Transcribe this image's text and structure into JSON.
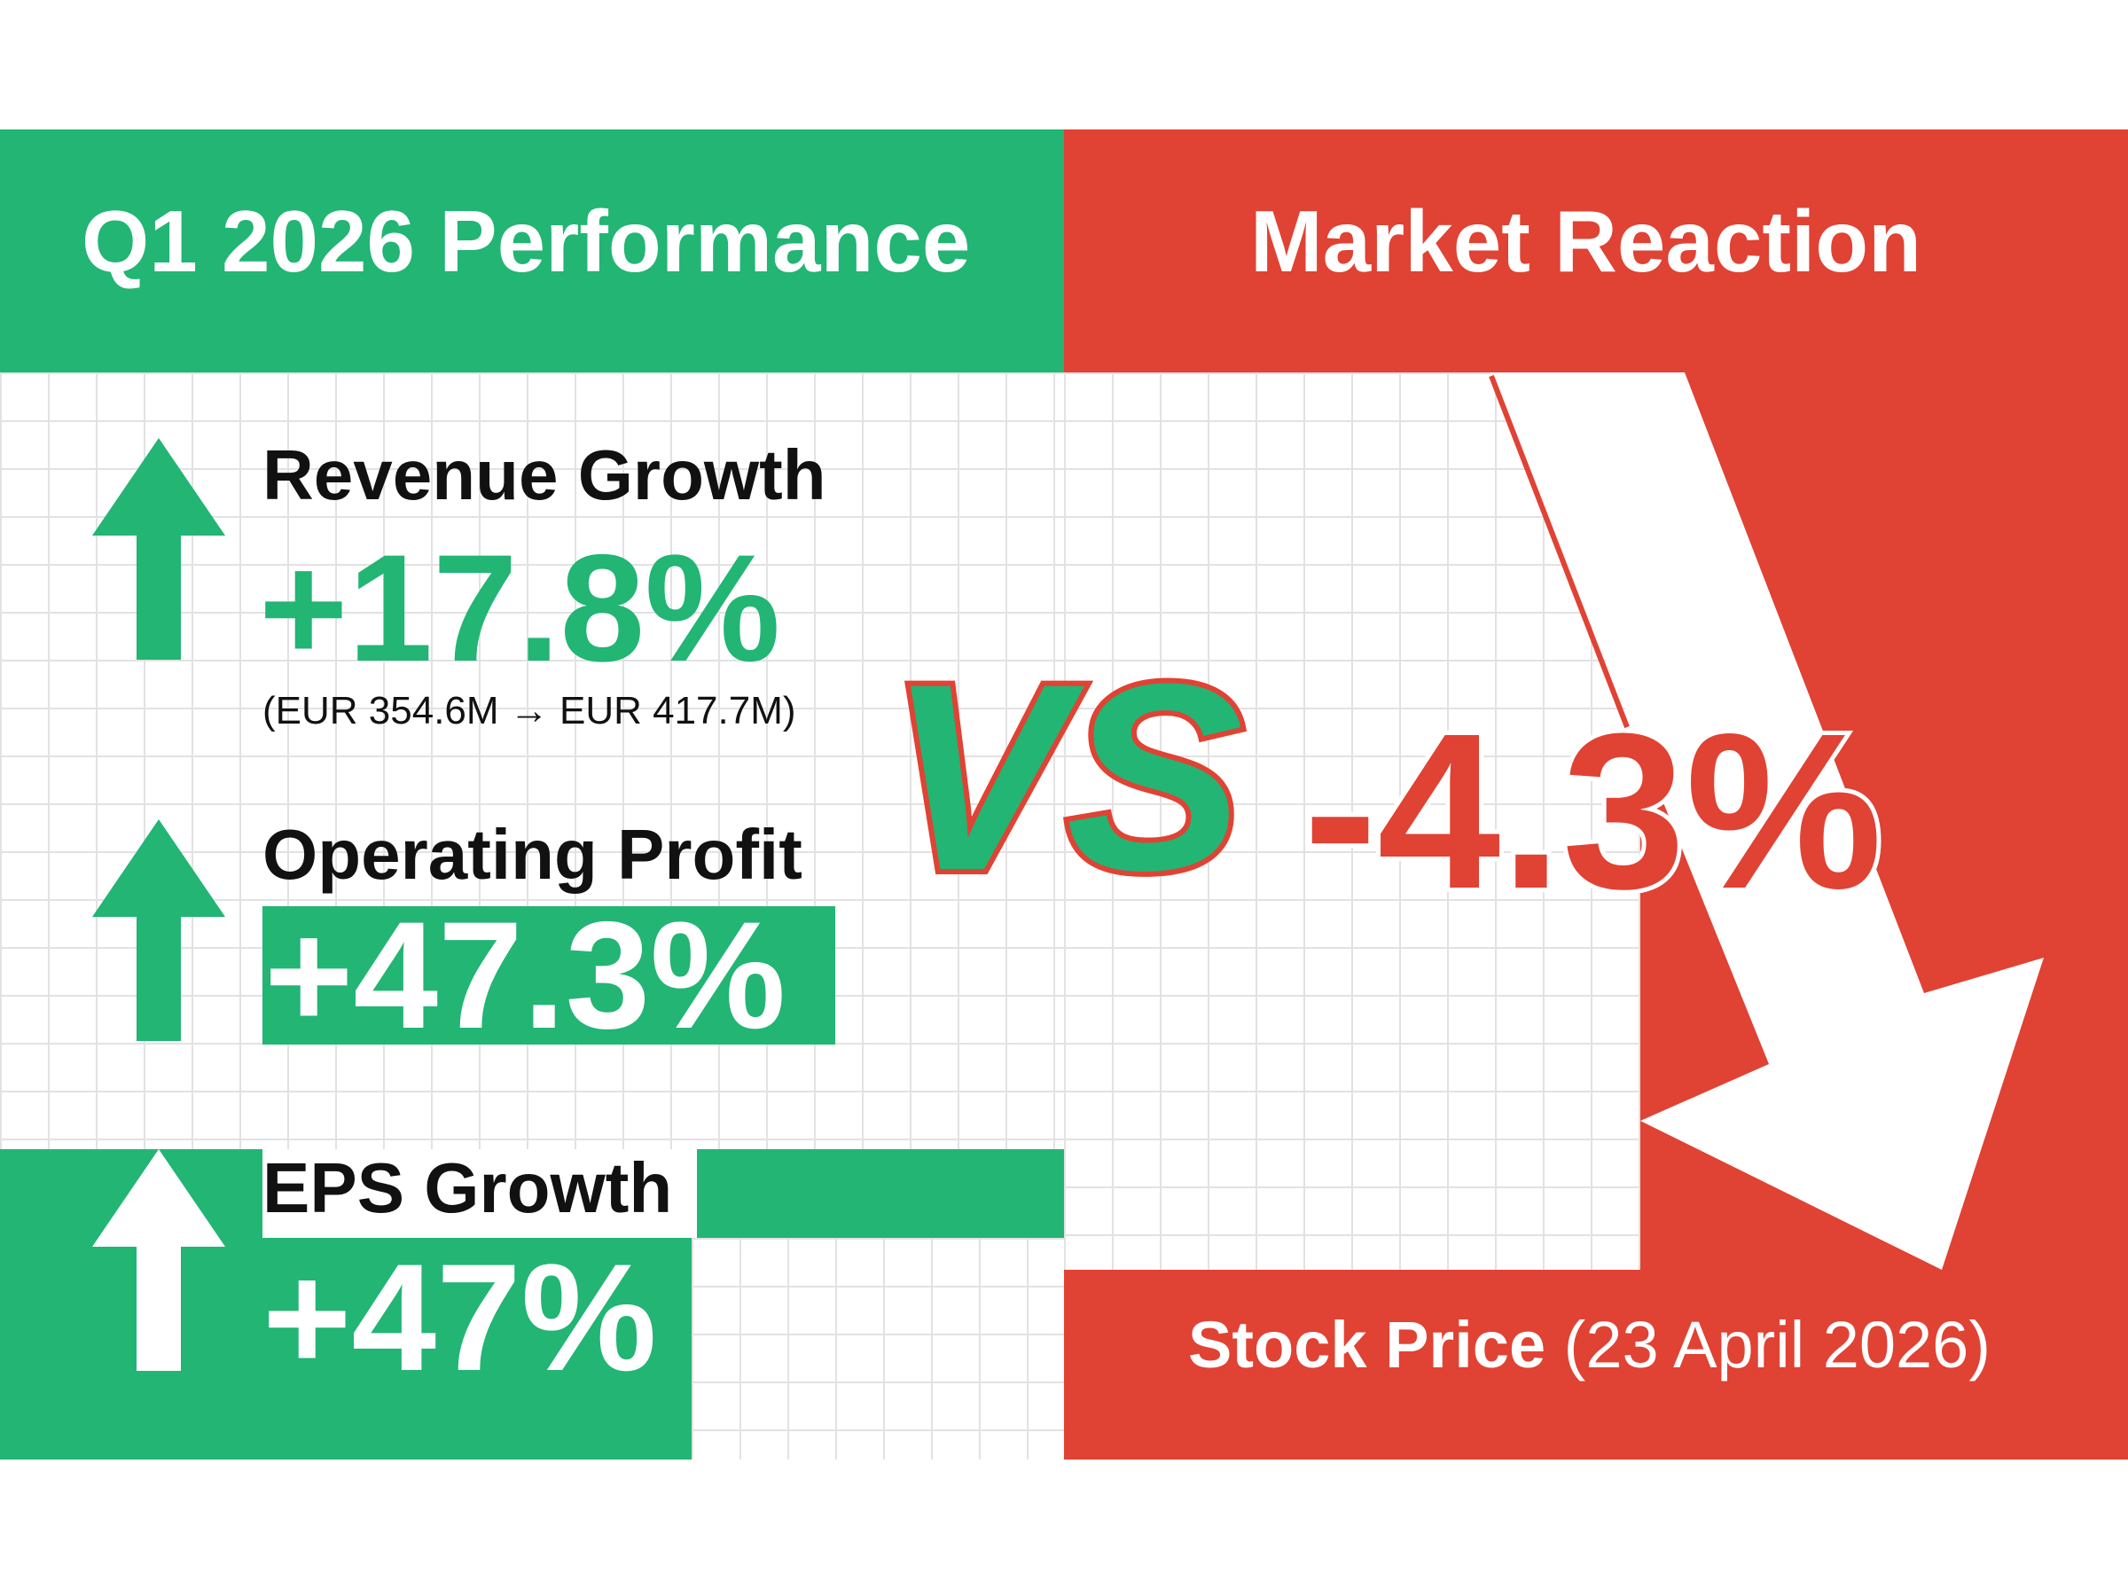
{
  "left_panel": {
    "title": "Q1 2026 Performance",
    "color": "#22b574",
    "metrics": [
      {
        "title": "Revenue Growth",
        "value": "+17.8%",
        "detail": "(EUR 354.6M → EUR 417.7M)",
        "icon": "arrow-up-icon"
      },
      {
        "title": "Operating Profit",
        "value": "+47.3%",
        "icon": "arrow-up-icon"
      },
      {
        "title": "EPS Growth",
        "value": "+47%",
        "icon": "arrow-up-icon"
      }
    ]
  },
  "versus": {
    "label": "VS"
  },
  "right_panel": {
    "title": "Market Reaction",
    "color": "#e04234",
    "value": "-4.3%",
    "icon": "arrow-down-icon",
    "caption_bold": "Stock Price",
    "caption_date": "(23 April 2026)"
  }
}
